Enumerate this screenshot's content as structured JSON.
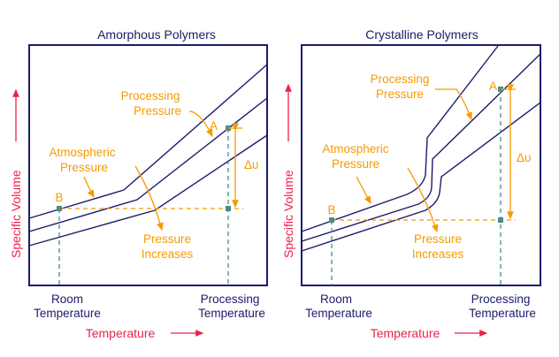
{
  "panels": [
    {
      "title": "Amorphous Polymers",
      "y_axis_label": "Specific Volume",
      "x_axis_label": "Temperature",
      "x_labels": {
        "room": [
          "Room",
          "Temperature"
        ],
        "processing": [
          "Processing",
          "Temperature"
        ]
      },
      "annotations": {
        "processing_pressure": [
          "Processing",
          "Pressure"
        ],
        "atmospheric_pressure": [
          "Atmospheric",
          "Pressure"
        ],
        "pressure_increases": [
          "Pressure",
          "Increases"
        ],
        "point_a": "A",
        "point_b": "B",
        "delta_v": "Δυ"
      }
    },
    {
      "title": "Crystalline Polymers",
      "y_axis_label": "Specific Volume",
      "x_axis_label": "Temperature",
      "x_labels": {
        "room": [
          "Room",
          "Temperature"
        ],
        "processing": [
          "Processing",
          "Temperature"
        ]
      },
      "annotations": {
        "processing_pressure": [
          "Processing",
          "Pressure"
        ],
        "atmospheric_pressure": [
          "Atmospheric",
          "Pressure"
        ],
        "pressure_increases": [
          "Pressure",
          "Increases"
        ],
        "point_a": "A",
        "point_b": "B",
        "delta_v": "Δυ"
      }
    }
  ],
  "colors": {
    "curve": "#1b1b6b",
    "annotation": "#f59b00",
    "axis_label": "#ee1f4a",
    "guide": "#4d8a8a"
  }
}
